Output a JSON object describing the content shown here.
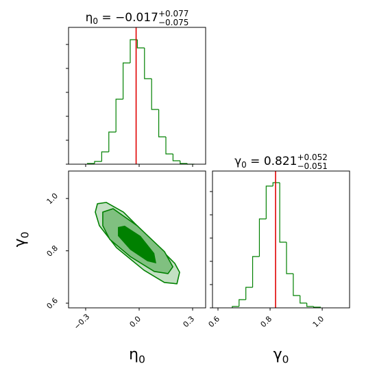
{
  "chart_data": [
    {
      "type": "histogram",
      "param": "η",
      "param_sub": "0",
      "eq": " = ",
      "estimate": "−0.017",
      "plus": "+0.077",
      "minus": "−0.075",
      "marker": -0.017,
      "marker_color": "#e00000",
      "color": "#008000",
      "bins": [
        -0.29,
        -0.25,
        -0.21,
        -0.17,
        -0.13,
        -0.09,
        -0.05,
        -0.01,
        0.03,
        0.07,
        0.11,
        0.15,
        0.19,
        0.23,
        0.27,
        0.31
      ],
      "values": [
        1,
        4,
        18,
        47,
        95,
        148,
        182,
        170,
        125,
        80,
        40,
        15,
        5,
        1,
        0
      ],
      "xlim": [
        -0.396,
        0.373
      ],
      "xticks": [
        -0.3,
        0,
        0.3
      ],
      "ylim": [
        0,
        200
      ],
      "yticks": [
        0,
        35,
        70,
        105,
        140,
        175
      ]
    },
    {
      "type": "contour",
      "xlabel": "η",
      "xlabel_sub": "0",
      "ylabel": "γ",
      "ylabel_sub": "0",
      "colors": [
        "#c3e0c3",
        "#80c080",
        "#008000"
      ],
      "line_color": "#008000",
      "contours": [
        {
          "x": [
            -0.234,
            -0.184,
            -0.088,
            0.046,
            0.2,
            0.227,
            0.212,
            0.142,
            0.027,
            -0.127,
            -0.223,
            -0.246
          ],
          "y": [
            0.98,
            0.985,
            0.948,
            0.857,
            0.752,
            0.718,
            0.674,
            0.679,
            0.726,
            0.812,
            0.896,
            0.948
          ]
        },
        {
          "x": [
            -0.204,
            -0.146,
            -0.011,
            0.142,
            0.189,
            0.162,
            0.085,
            -0.05,
            -0.165,
            -0.204
          ],
          "y": [
            0.948,
            0.961,
            0.896,
            0.797,
            0.739,
            0.713,
            0.721,
            0.778,
            0.844,
            0.896
          ]
        },
        {
          "x": [
            -0.119,
            -0.081,
            0.008,
            0.085,
            0.096,
            0.046,
            -0.05,
            -0.119
          ],
          "y": [
            0.891,
            0.896,
            0.857,
            0.791,
            0.752,
            0.76,
            0.804,
            0.857
          ]
        }
      ],
      "xlim": [
        -0.396,
        0.373
      ],
      "xticks": [
        {
          "value": -0.3,
          "label": "−0.3"
        },
        {
          "value": 0,
          "label": "0.0"
        },
        0.3
      ],
      "ylim": [
        0.582,
        1.105
      ],
      "yticks": [
        0.6,
        0.8,
        {
          "value": 1,
          "label": "1.0"
        }
      ]
    },
    {
      "type": "histogram",
      "param": "γ",
      "param_sub": "0",
      "eq": " = ",
      "estimate": "0.821",
      "plus": "+0.052",
      "minus": "−0.051",
      "marker": 0.821,
      "marker_color": "#e00000",
      "color": "#008000",
      "xlabel": "γ",
      "xlabel_sub": "0",
      "bins": [
        0.655,
        0.681,
        0.707,
        0.733,
        0.759,
        0.785,
        0.811,
        0.837,
        0.863,
        0.889,
        0.915,
        0.941,
        0.967,
        0.993
      ],
      "values": [
        2,
        12,
        30,
        75,
        130,
        178,
        183,
        96,
        50,
        18,
        7,
        2,
        1
      ],
      "xlim": [
        0.579,
        1.105
      ],
      "xticks": [
        0.6,
        0.8,
        {
          "value": 1,
          "label": "1.0"
        }
      ],
      "ylim": [
        0,
        200
      ],
      "yticks": [
        0,
        34,
        68,
        102,
        136,
        170
      ]
    }
  ]
}
